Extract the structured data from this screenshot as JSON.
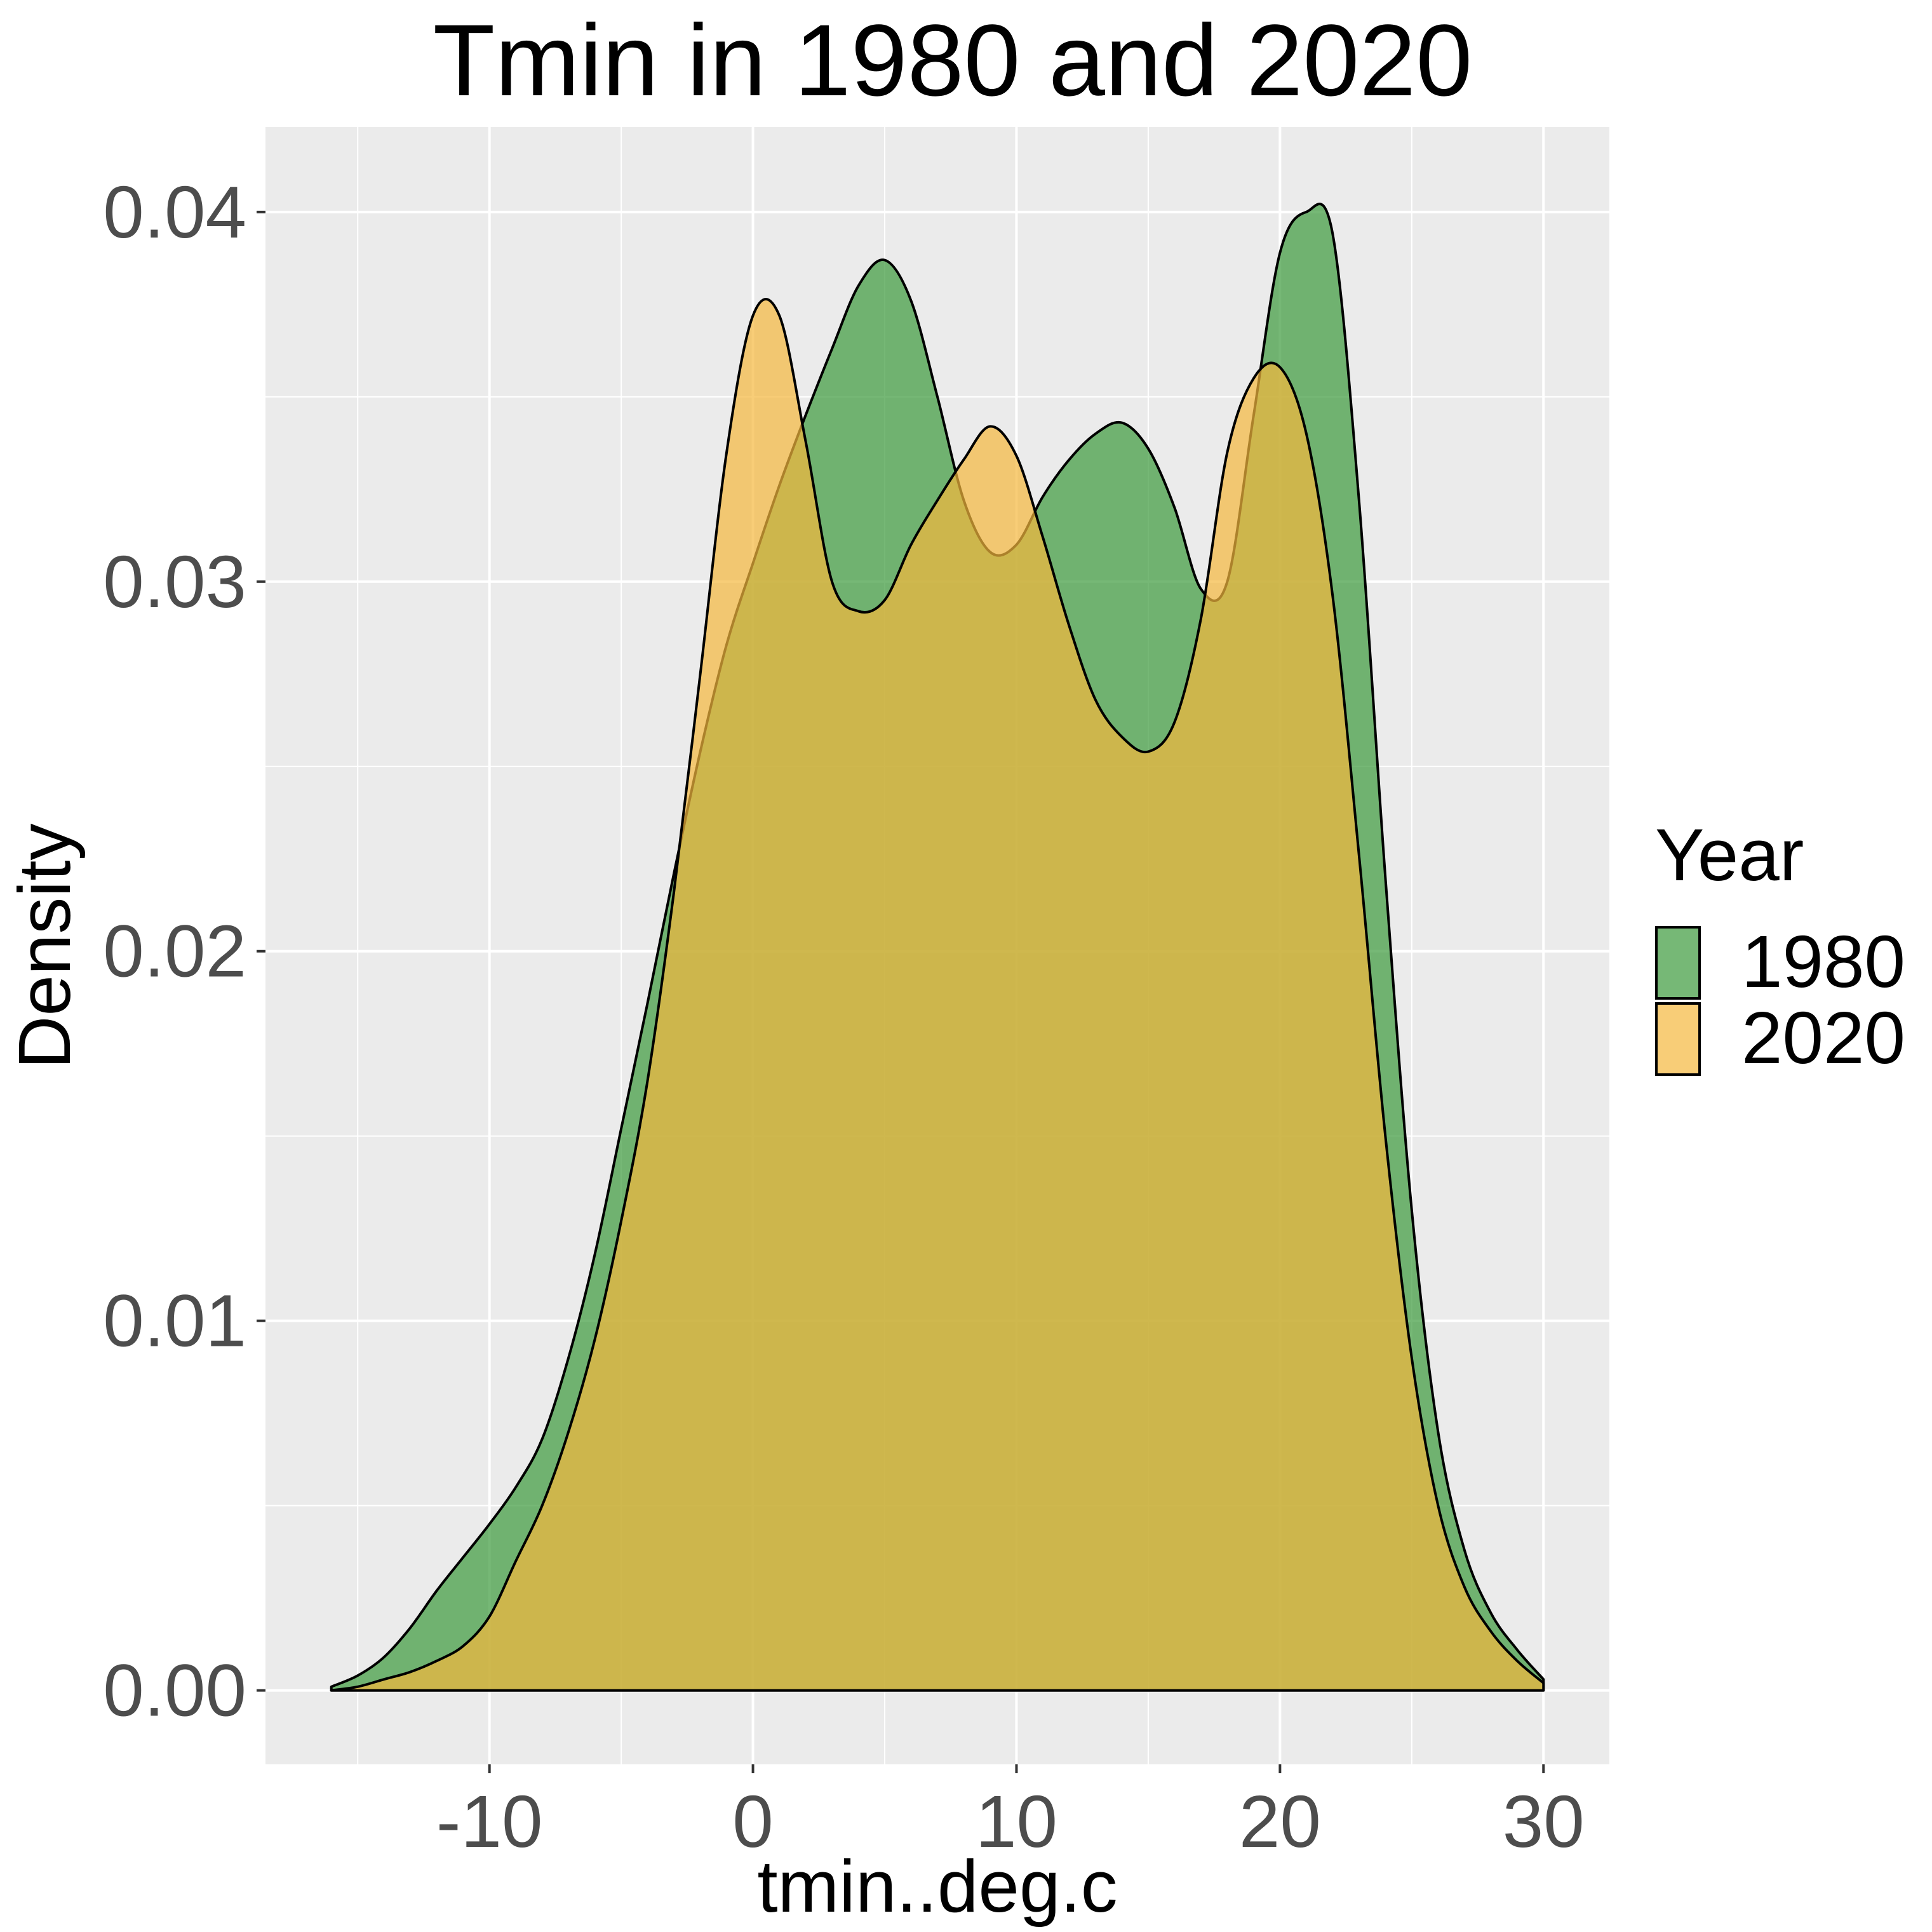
{
  "chart_data": {
    "type": "area",
    "subtype": "density",
    "title": "Tmin in 1980 and 2020",
    "xlabel": "tmin..deg.c",
    "ylabel": "Density",
    "xlim": [
      -18.5,
      32.5
    ],
    "ylim": [
      -0.002,
      0.0423
    ],
    "x_ticks": [
      -10,
      0,
      10,
      20,
      30
    ],
    "x_tick_labels": [
      "-10",
      "0",
      "10",
      "20",
      "30"
    ],
    "y_ticks": [
      0.0,
      0.01,
      0.02,
      0.03,
      0.04
    ],
    "y_tick_labels": [
      "0.00",
      "0.01",
      "0.02",
      "0.03",
      "0.04"
    ],
    "grid": true,
    "background": "#ebebeb",
    "legend": {
      "title": "Year",
      "position": "right"
    },
    "series": [
      {
        "name": "1980",
        "color": "#3c9a3c",
        "opacity": 0.7,
        "points": [
          [
            -16,
            0.0001
          ],
          [
            -15,
            0.0004
          ],
          [
            -14,
            0.0009
          ],
          [
            -13,
            0.0017
          ],
          [
            -12,
            0.0027
          ],
          [
            -11,
            0.0036
          ],
          [
            -10,
            0.0045
          ],
          [
            -9,
            0.0055
          ],
          [
            -8,
            0.0068
          ],
          [
            -7,
            0.009
          ],
          [
            -6,
            0.0118
          ],
          [
            -5,
            0.0152
          ],
          [
            -4,
            0.0186
          ],
          [
            -3,
            0.0221
          ],
          [
            -2,
            0.0254
          ],
          [
            -1,
            0.0283
          ],
          [
            0,
            0.0305
          ],
          [
            1,
            0.0326
          ],
          [
            2,
            0.0345
          ],
          [
            3,
            0.0363
          ],
          [
            4,
            0.038
          ],
          [
            5,
            0.0387
          ],
          [
            6,
            0.0376
          ],
          [
            7,
            0.035
          ],
          [
            8,
            0.0322
          ],
          [
            9,
            0.0308
          ],
          [
            10,
            0.031
          ],
          [
            11,
            0.0323
          ],
          [
            12,
            0.0333
          ],
          [
            13,
            0.034
          ],
          [
            14,
            0.0343
          ],
          [
            15,
            0.0336
          ],
          [
            16,
            0.032
          ],
          [
            17,
            0.0298
          ],
          [
            18,
            0.03
          ],
          [
            19,
            0.0345
          ],
          [
            20,
            0.0389
          ],
          [
            21,
            0.04
          ],
          [
            22,
            0.0394
          ],
          [
            23,
            0.0322
          ],
          [
            24,
            0.022
          ],
          [
            25,
            0.013
          ],
          [
            26,
            0.007
          ],
          [
            27,
            0.0038
          ],
          [
            28,
            0.0021
          ],
          [
            29,
            0.0011
          ],
          [
            30,
            0.0003
          ]
        ]
      },
      {
        "name": "2020",
        "color": "#f5b83d",
        "opacity": 0.7,
        "points": [
          [
            -16,
            0.0
          ],
          [
            -15,
            0.0001
          ],
          [
            -14,
            0.0003
          ],
          [
            -13,
            0.0005
          ],
          [
            -12,
            0.0008
          ],
          [
            -11,
            0.0012
          ],
          [
            -10,
            0.002
          ],
          [
            -9,
            0.0035
          ],
          [
            -8,
            0.005
          ],
          [
            -7,
            0.007
          ],
          [
            -6,
            0.0095
          ],
          [
            -5,
            0.0127
          ],
          [
            -4,
            0.0165
          ],
          [
            -3,
            0.0216
          ],
          [
            -2,
            0.0275
          ],
          [
            -1,
            0.0335
          ],
          [
            0,
            0.0372
          ],
          [
            1,
            0.0372
          ],
          [
            2,
            0.0338
          ],
          [
            3,
            0.03
          ],
          [
            4,
            0.0292
          ],
          [
            5,
            0.0295
          ],
          [
            6,
            0.031
          ],
          [
            7,
            0.0322
          ],
          [
            8,
            0.0333
          ],
          [
            9,
            0.0342
          ],
          [
            10,
            0.0334
          ],
          [
            11,
            0.0312
          ],
          [
            12,
            0.0288
          ],
          [
            13,
            0.0268
          ],
          [
            14,
            0.0258
          ],
          [
            15,
            0.0254
          ],
          [
            16,
            0.0262
          ],
          [
            17,
            0.029
          ],
          [
            18,
            0.0335
          ],
          [
            19,
            0.0355
          ],
          [
            20,
            0.0358
          ],
          [
            21,
            0.034
          ],
          [
            22,
            0.0296
          ],
          [
            23,
            0.0226
          ],
          [
            24,
            0.015
          ],
          [
            25,
            0.009
          ],
          [
            26,
            0.005
          ],
          [
            27,
            0.0028
          ],
          [
            28,
            0.0016
          ],
          [
            29,
            0.0008
          ],
          [
            30,
            0.0002
          ]
        ]
      }
    ]
  }
}
